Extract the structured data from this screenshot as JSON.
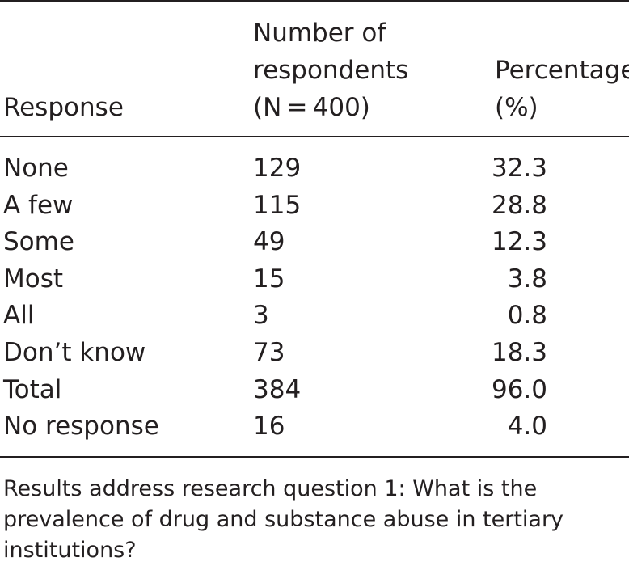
{
  "table": {
    "headers": {
      "response": "Response",
      "number_line1": "Number of",
      "number_line2": "respondents",
      "number_line3": "(N = 400)",
      "percentage_line1": "Percentage",
      "percentage_line2": "(%)"
    },
    "rows": [
      {
        "response": "None",
        "number": "129",
        "percentage": "32.3"
      },
      {
        "response": "A few",
        "number": "115",
        "percentage": "28.8"
      },
      {
        "response": "Some",
        "number": "49",
        "percentage": "12.3"
      },
      {
        "response": "Most",
        "number": "15",
        "percentage": "3.8"
      },
      {
        "response": "All",
        "number": "3",
        "percentage": "0.8"
      },
      {
        "response": "Don’t know",
        "number": "73",
        "percentage": "18.3"
      },
      {
        "response": "Total",
        "number": "384",
        "percentage": "96.0"
      },
      {
        "response": "No response",
        "number": "16",
        "percentage": "4.0"
      }
    ],
    "footnote": "Results address research question 1: What is the prevalence of drug and substance abuse in tertiary institutions?"
  }
}
